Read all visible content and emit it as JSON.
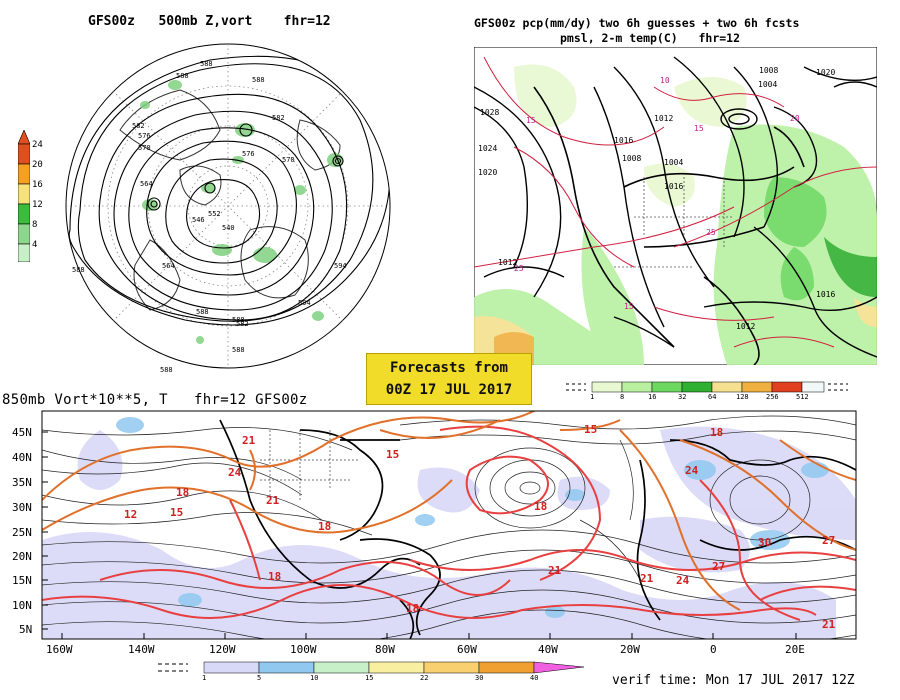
{
  "panel_500mb": {
    "title": "GFS00z   500mb Z,vort    fhr=12",
    "colorbar_ticks": [
      "24",
      "20",
      "16",
      "12",
      "8",
      "4"
    ],
    "colorbar_colors": [
      "#e0501e",
      "#f5a020",
      "#f5e27a",
      "#3cbc3c",
      "#8ed68e",
      "#c8f0c8"
    ],
    "contour_labels": [
      "588",
      "588",
      "582",
      "576",
      "570",
      "564",
      "576",
      "570",
      "582",
      "588",
      "594",
      "594",
      "588",
      "582",
      "588",
      "588",
      "552",
      "546",
      "540",
      "564"
    ]
  },
  "panel_pcp": {
    "title_line1": "GFS00z pcp(mm/dy) two 6h guesses + two 6h fcsts",
    "title_line2": "pmsl, 2-m temp(C)   fhr=12",
    "pressure_labels": [
      "1028",
      "1024",
      "1020",
      "1016",
      "1012",
      "1008",
      "1004",
      "1016",
      "1020",
      "1016",
      "1012",
      "1012",
      "1008",
      "1004"
    ],
    "temp_labels": [
      "15",
      "10",
      "25",
      "15",
      "20",
      "25",
      "15"
    ],
    "colorbar_ticks": [
      "1",
      "8",
      "16",
      "32",
      "64",
      "128",
      "256",
      "512"
    ],
    "colorbar_colors": [
      "#e8f8d0",
      "#b8f0a0",
      "#6cd860",
      "#30b030",
      "#f5e090",
      "#f0b040",
      "#e04020",
      "#f0f8f8"
    ]
  },
  "forecast_box": {
    "line1": "Forecasts from",
    "line2": "00Z 17 JUL 2017"
  },
  "panel_850mb": {
    "title": "850mb Vort*10**5, T   fhr=12 GFS00z",
    "lat_labels": [
      "45N",
      "40N",
      "35N",
      "30N",
      "25N",
      "20N",
      "15N",
      "10N",
      "5N"
    ],
    "lon_labels": [
      "160W",
      "140W",
      "120W",
      "100W",
      "80W",
      "60W",
      "40W",
      "20W",
      "0",
      "20E"
    ],
    "isotherm_labels": [
      "21",
      "18",
      "15",
      "12",
      "24",
      "21",
      "18",
      "15",
      "18",
      "21",
      "18",
      "15",
      "18",
      "24",
      "21",
      "27",
      "30",
      "27",
      "24",
      "21",
      "18"
    ],
    "colorbar_ticks": [
      "1",
      "5",
      "10",
      "15",
      "22",
      "30",
      "40"
    ],
    "colorbar_colors": [
      "#d8d8f8",
      "#90c8f0",
      "#c8f0c8",
      "#f8f0a0",
      "#f8d070",
      "#f0a030",
      "#f07820",
      "#f060e0"
    ]
  },
  "verif_time": "verif time: Mon 17 JUL 2017 12Z"
}
